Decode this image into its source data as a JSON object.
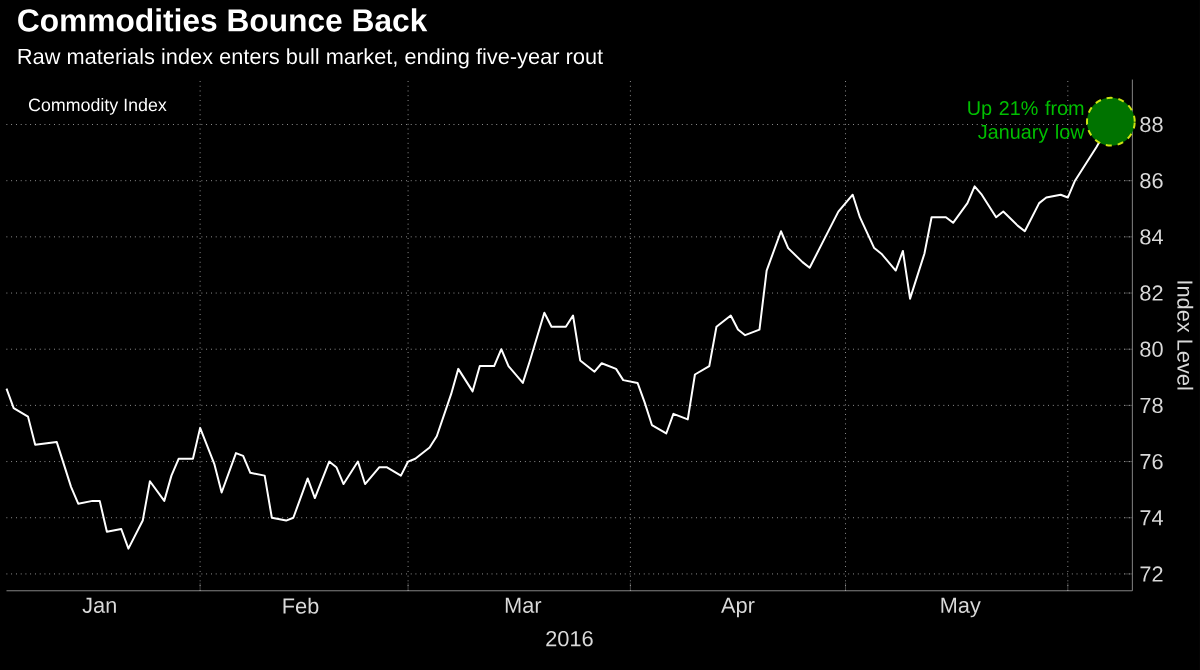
{
  "chart_data": {
    "type": "line",
    "title": "Commodities Bounce Back",
    "subtitle": "Raw materials index enters bull market, ending five-year rout",
    "xlabel": "2016",
    "ylabel": "Index Level",
    "x": [
      "2016-01-05",
      "2016-01-06",
      "2016-01-08",
      "2016-01-09",
      "2016-01-12",
      "2016-01-14",
      "2016-01-15",
      "2016-01-17",
      "2016-01-18",
      "2016-01-19",
      "2016-01-21",
      "2016-01-22",
      "2016-01-24",
      "2016-01-25",
      "2016-01-27",
      "2016-01-28",
      "2016-01-29",
      "2016-01-31",
      "2016-02-01",
      "2016-02-03",
      "2016-02-04",
      "2016-02-06",
      "2016-02-07",
      "2016-02-08",
      "2016-02-10",
      "2016-02-11",
      "2016-02-13",
      "2016-02-14",
      "2016-02-16",
      "2016-02-17",
      "2016-02-19",
      "2016-02-20",
      "2016-02-21",
      "2016-02-23",
      "2016-02-24",
      "2016-02-26",
      "2016-02-27",
      "2016-02-29",
      "2016-03-01",
      "2016-03-02",
      "2016-03-04",
      "2016-03-05",
      "2016-03-07",
      "2016-03-08",
      "2016-03-10",
      "2016-03-11",
      "2016-03-13",
      "2016-03-14",
      "2016-03-15",
      "2016-03-17",
      "2016-03-18",
      "2016-03-20",
      "2016-03-21",
      "2016-03-23",
      "2016-03-24",
      "2016-03-25",
      "2016-03-27",
      "2016-03-28",
      "2016-03-30",
      "2016-03-31",
      "2016-04-02",
      "2016-04-03",
      "2016-04-04",
      "2016-04-06",
      "2016-04-07",
      "2016-04-09",
      "2016-04-10",
      "2016-04-12",
      "2016-04-13",
      "2016-04-15",
      "2016-04-16",
      "2016-04-17",
      "2016-04-19",
      "2016-04-20",
      "2016-04-22",
      "2016-04-23",
      "2016-04-25",
      "2016-04-26",
      "2016-04-28",
      "2016-04-29",
      "2016-04-30",
      "2016-05-02",
      "2016-05-03",
      "2016-05-05",
      "2016-05-06",
      "2016-05-08",
      "2016-05-09",
      "2016-05-10",
      "2016-05-12",
      "2016-05-13",
      "2016-05-15",
      "2016-05-16",
      "2016-05-18",
      "2016-05-19",
      "2016-05-20",
      "2016-05-22",
      "2016-05-23",
      "2016-05-25",
      "2016-05-26",
      "2016-05-28",
      "2016-05-29",
      "2016-05-31",
      "2016-06-01",
      "2016-06-02",
      "2016-06-04",
      "2016-06-05",
      "2016-06-07"
    ],
    "series": [
      {
        "name": "Commodity Index",
        "color": "#ffffff",
        "values": [
          78.6,
          77.9,
          77.6,
          76.6,
          76.7,
          75.1,
          74.5,
          74.6,
          74.6,
          73.5,
          73.6,
          72.9,
          73.9,
          75.3,
          74.6,
          75.5,
          76.1,
          76.1,
          77.2,
          75.9,
          74.9,
          76.3,
          76.2,
          75.6,
          75.5,
          74.0,
          73.9,
          74.0,
          75.4,
          74.7,
          76.0,
          75.8,
          75.2,
          76.0,
          75.2,
          75.8,
          75.8,
          75.5,
          76.0,
          76.1,
          76.5,
          76.9,
          78.4,
          79.3,
          78.5,
          79.4,
          79.4,
          80.0,
          79.4,
          78.8,
          79.6,
          81.3,
          80.8,
          80.8,
          81.2,
          79.6,
          79.2,
          79.5,
          79.3,
          78.9,
          78.8,
          78.1,
          77.3,
          77.0,
          77.7,
          77.5,
          79.1,
          79.4,
          80.8,
          81.2,
          80.7,
          80.5,
          80.7,
          82.8,
          84.2,
          83.6,
          83.1,
          82.9,
          83.9,
          84.4,
          84.9,
          85.5,
          84.7,
          83.6,
          83.4,
          82.8,
          83.5,
          81.8,
          83.4,
          84.7,
          84.7,
          84.5,
          85.2,
          85.8,
          85.5,
          84.7,
          84.9,
          84.4,
          84.2,
          85.2,
          85.4,
          85.5,
          85.4,
          86.0,
          86.8,
          87.2,
          88.1
        ]
      }
    ],
    "xlim": [
      "2016-01-05",
      "2016-06-10"
    ],
    "xticks": [
      {
        "value": "2016-02-01",
        "label": null
      },
      {
        "value": "2016-03-01",
        "label": null
      },
      {
        "value": "2016-04-01",
        "label": null
      },
      {
        "value": "2016-05-01",
        "label": null
      },
      {
        "value": "2016-06-01",
        "label": null
      },
      {
        "value": "2016-01-18",
        "label": "Jan"
      },
      {
        "value": "2016-02-15",
        "label": "Feb"
      },
      {
        "value": "2016-03-17",
        "label": "Mar"
      },
      {
        "value": "2016-04-16",
        "label": "Apr"
      },
      {
        "value": "2016-05-17",
        "label": "May"
      }
    ],
    "ylim": [
      71.4,
      89.6
    ],
    "yticks": [
      72,
      74,
      76,
      78,
      80,
      82,
      84,
      86,
      88
    ],
    "grid": true,
    "legend": "top left",
    "annotations": [
      {
        "text": "Up 21% from January low",
        "x": "2016-06-07",
        "y": 88.1
      }
    ]
  }
}
